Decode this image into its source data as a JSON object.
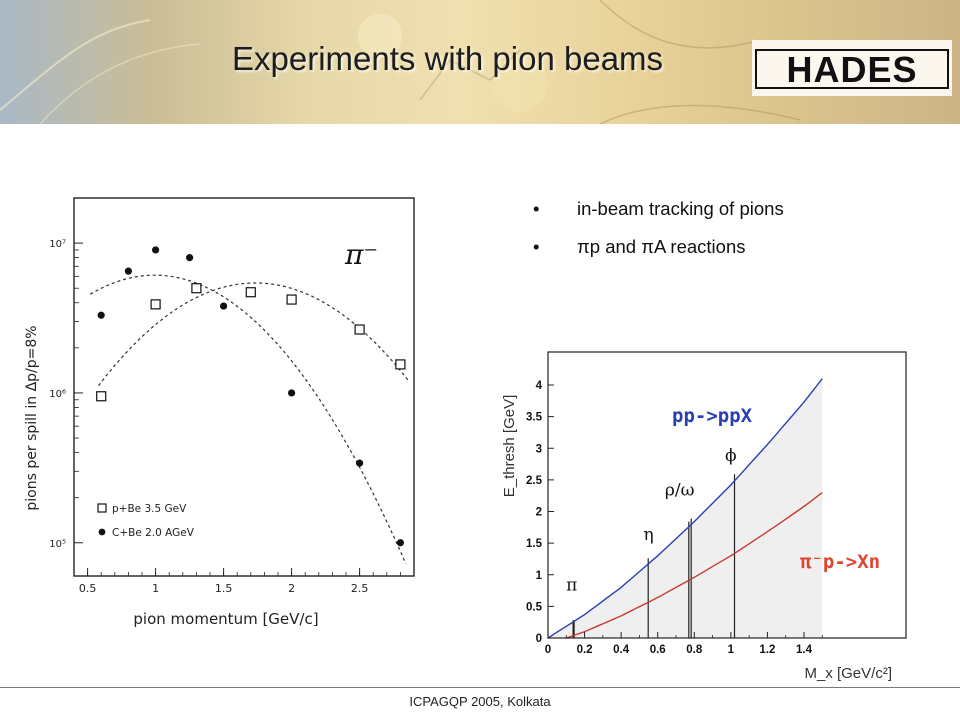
{
  "slide": {
    "title": "Experiments with pion beams",
    "logo_text": "HADES",
    "bullets": [
      {
        "text": "in-beam tracking of pions"
      },
      {
        "text": "πp and πA reactions"
      }
    ],
    "footer": "ICPAGQP 2005, Kolkata"
  },
  "chart_data": [
    {
      "type": "scatter",
      "ylabel": "pions per spill in Δp/p=8%",
      "xlabel": "pion momentum [GeV/c]",
      "annotation": "π⁻",
      "y_scale": "log",
      "xlim": [
        0.4,
        2.9
      ],
      "ylim": [
        60000,
        20000000
      ],
      "x_ticks": [
        0.5,
        1,
        1.5,
        2,
        2.5
      ],
      "x_tick_labels": [
        "0.5",
        "1",
        "1.5",
        "2",
        "2.5"
      ],
      "y_ticks": [
        100000,
        1000000,
        10000000
      ],
      "y_tick_labels": [
        "10⁵",
        "10⁶",
        "10⁷"
      ],
      "legend_position": "bottom-left",
      "series": [
        {
          "name": "p+Be 3.5 GeV",
          "marker": "open-square",
          "x": [
            0.6,
            1.0,
            1.3,
            1.7,
            2.0,
            2.5,
            2.8
          ],
          "y": [
            950000,
            3900000,
            5000000,
            4700000,
            4200000,
            2650000,
            1550000
          ]
        },
        {
          "name": "C+Be 2.0 AGeV",
          "marker": "filled-circle",
          "x": [
            0.6,
            0.8,
            1.0,
            1.25,
            1.5,
            2.0,
            2.5,
            2.8
          ],
          "y": [
            3300000,
            6500000,
            9000000,
            8000000,
            3800000,
            1000000,
            340000,
            100000
          ]
        }
      ]
    },
    {
      "type": "line",
      "ylabel": "E_thresh [GeV]",
      "xlabel": "M_x [GeV/c²]",
      "xlim": [
        0,
        1.5
      ],
      "ylim": [
        0,
        4.3
      ],
      "x_ticks": [
        0,
        0.2,
        0.4,
        0.6,
        0.8,
        1.0,
        1.2,
        1.4
      ],
      "x_tick_labels": [
        "0",
        "0.2",
        "0.4",
        "0.6",
        "0.8",
        "1",
        "1.2",
        "1.4"
      ],
      "y_ticks": [
        0,
        0.5,
        1,
        1.5,
        2,
        2.5,
        3,
        3.5,
        4
      ],
      "y_tick_labels": [
        "0",
        "0.5",
        "1",
        "1.5",
        "2",
        "2.5",
        "3",
        "3.5",
        "4"
      ],
      "grid": false,
      "series": [
        {
          "name": "pp->ppX",
          "color": "#2a3fb2",
          "x": [
            0,
            0.2,
            0.4,
            0.6,
            0.8,
            1.0,
            1.2,
            1.4,
            1.5
          ],
          "y": [
            0,
            0.37,
            0.8,
            1.3,
            1.84,
            2.42,
            3.06,
            3.73,
            4.1
          ]
        },
        {
          "name": "π⁻p->Xn",
          "color": "#c8392e",
          "x": [
            0.1,
            0.2,
            0.4,
            0.6,
            0.8,
            1.0,
            1.2,
            1.4,
            1.5
          ],
          "y": [
            0,
            0.1,
            0.35,
            0.64,
            0.96,
            1.3,
            1.68,
            2.08,
            2.3
          ]
        }
      ],
      "particles": [
        {
          "label": "π",
          "mass": 0.14,
          "threshold": 0.28
        },
        {
          "label": "η",
          "mass": 0.548,
          "threshold": 1.26
        },
        {
          "label": "ρ",
          "mass": 0.77,
          "threshold": 1.84
        },
        {
          "label": "ω",
          "mass": 0.783,
          "threshold": 1.89
        },
        {
          "label": "ϕ",
          "mass": 1.02,
          "threshold": 2.59
        }
      ],
      "mass_labels": [
        {
          "text": "π",
          "x": 0.13,
          "y": 0.75
        },
        {
          "text": "η",
          "x": 0.55,
          "y": 1.55
        },
        {
          "text": "ρ/ω",
          "x": 0.72,
          "y": 2.25
        },
        {
          "text": "ϕ",
          "x": 1.0,
          "y": 2.8
        }
      ]
    }
  ],
  "colors": {
    "reaction_pp": "#2a3fb2",
    "reaction_pion": "#e0442e",
    "shade": "#efefef",
    "frame": "#222222"
  }
}
